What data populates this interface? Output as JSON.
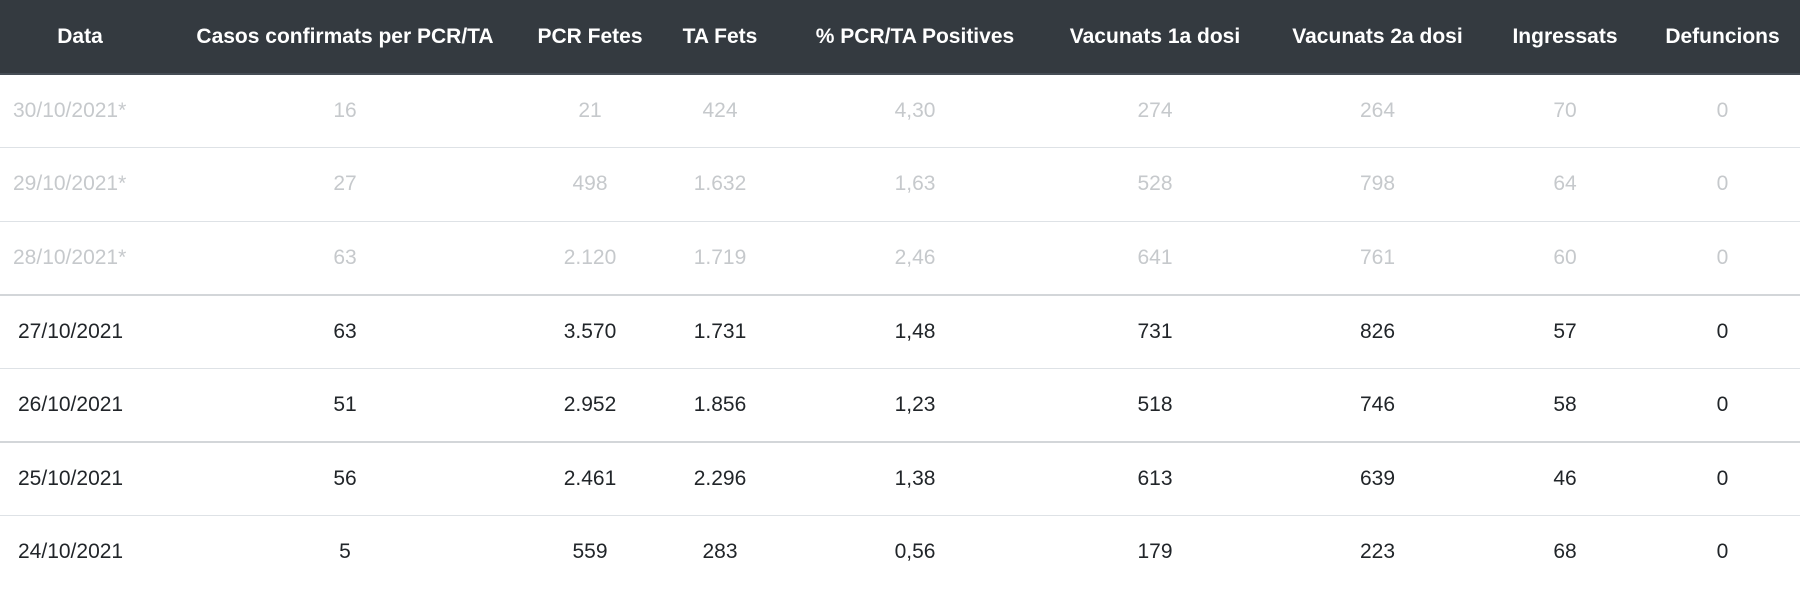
{
  "table": {
    "headers": [
      "Data",
      "Casos confirmats per PCR/TA",
      "PCR Fetes",
      "TA Fets",
      "% PCR/TA Positives",
      "Vacunats 1a dosi",
      "Vacunats 2a dosi",
      "Ingressats",
      "Defuncions"
    ],
    "rows": [
      {
        "provisional": true,
        "cells": [
          "30/10/2021*",
          "16",
          "21",
          "424",
          "4,30",
          "274",
          "264",
          "70",
          "0"
        ]
      },
      {
        "provisional": true,
        "cells": [
          "29/10/2021*",
          "27",
          "498",
          "1.632",
          "1,63",
          "528",
          "798",
          "64",
          "0"
        ]
      },
      {
        "provisional": true,
        "cells": [
          "28/10/2021*",
          "63",
          "2.120",
          "1.719",
          "2,46",
          "641",
          "761",
          "60",
          "0"
        ]
      },
      {
        "provisional": false,
        "cells": [
          "27/10/2021",
          "63",
          "3.570",
          "1.731",
          "1,48",
          "731",
          "826",
          "57",
          "0"
        ]
      },
      {
        "provisional": false,
        "cells": [
          "26/10/2021",
          "51",
          "2.952",
          "1.856",
          "1,23",
          "518",
          "746",
          "58",
          "0"
        ]
      },
      {
        "provisional": false,
        "cells": [
          "25/10/2021",
          "56",
          "2.461",
          "2.296",
          "1,38",
          "613",
          "639",
          "46",
          "0"
        ]
      },
      {
        "provisional": false,
        "cells": [
          "24/10/2021",
          "5",
          "559",
          "283",
          "0,56",
          "179",
          "223",
          "68",
          "0"
        ]
      }
    ]
  },
  "colors": {
    "header_bg": "#343a40",
    "header_text": "#ffffff",
    "row_text": "#212529",
    "provisional_text": "#c6c9cc",
    "border": "#dee2e6"
  }
}
